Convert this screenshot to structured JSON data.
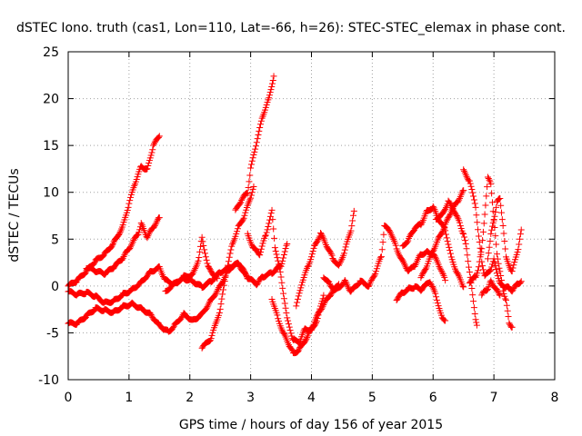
{
  "chart_data": {
    "type": "scatter",
    "title": "dSTEC Iono. truth (cas1, Lon=110, Lat=-66, h=26): STEC-STEC_elemax in phase cont.",
    "xlabel": "GPS time / hours of day 156 of year 2015",
    "ylabel": "dSTEC  / TECUs",
    "xlim": [
      0,
      8
    ],
    "ylim": [
      -10,
      25
    ],
    "xticks": [
      0,
      1,
      2,
      3,
      4,
      5,
      6,
      7,
      8
    ],
    "yticks": [
      -10,
      -5,
      0,
      5,
      10,
      15,
      20,
      25
    ],
    "grid": true,
    "marker": "+",
    "color": "#ff0000",
    "series": [
      {
        "points": [
          [
            0.0,
            0.0
          ],
          [
            0.15,
            0.6
          ],
          [
            0.3,
            1.6
          ],
          [
            0.45,
            2.7
          ],
          [
            0.6,
            3.4
          ],
          [
            0.75,
            4.6
          ],
          [
            0.9,
            6.4
          ],
          [
            1.0,
            8.8
          ],
          [
            1.1,
            11.0
          ],
          [
            1.2,
            12.8
          ],
          [
            1.3,
            12.4
          ],
          [
            1.4,
            15.0
          ],
          [
            1.5,
            16.0
          ]
        ]
      },
      {
        "points": [
          [
            0.3,
            2.0
          ],
          [
            0.45,
            1.6
          ],
          [
            0.6,
            1.3
          ],
          [
            0.75,
            2.0
          ],
          [
            0.9,
            3.0
          ],
          [
            1.0,
            4.0
          ],
          [
            1.15,
            5.6
          ],
          [
            1.2,
            6.6
          ],
          [
            1.3,
            5.2
          ],
          [
            1.4,
            6.3
          ],
          [
            1.5,
            7.3
          ]
        ]
      },
      {
        "points": [
          [
            0.0,
            -4.0
          ],
          [
            0.15,
            -4.0
          ],
          [
            0.3,
            -3.2
          ],
          [
            0.45,
            -2.4
          ],
          [
            0.6,
            -2.6
          ],
          [
            0.75,
            -2.8
          ],
          [
            0.9,
            -2.2
          ],
          [
            1.05,
            -1.9
          ],
          [
            1.2,
            -2.4
          ],
          [
            1.35,
            -3.0
          ],
          [
            1.5,
            -4.2
          ],
          [
            1.65,
            -4.9
          ],
          [
            1.75,
            -4.2
          ],
          [
            1.9,
            -3.0
          ],
          [
            2.05,
            -3.7
          ],
          [
            2.2,
            -3.0
          ],
          [
            2.35,
            -1.5
          ],
          [
            2.5,
            0.0
          ],
          [
            2.65,
            2.0
          ],
          [
            2.8,
            2.4
          ],
          [
            2.95,
            0.8
          ]
        ]
      },
      {
        "points": [
          [
            0.0,
            -0.6
          ],
          [
            0.15,
            -0.9
          ],
          [
            0.3,
            -0.7
          ],
          [
            0.45,
            -1.1
          ],
          [
            0.6,
            -1.8
          ],
          [
            0.75,
            -1.6
          ],
          [
            0.9,
            -0.9
          ],
          [
            1.05,
            -0.4
          ],
          [
            1.2,
            0.4
          ],
          [
            1.35,
            1.5
          ],
          [
            1.5,
            2.0
          ],
          [
            1.6,
            0.6
          ],
          [
            1.75,
            0.2
          ],
          [
            1.9,
            1.0
          ],
          [
            2.05,
            1.2
          ],
          [
            2.15,
            3.0
          ],
          [
            2.2,
            5.2
          ],
          [
            2.3,
            2.0
          ],
          [
            2.45,
            0.8
          ]
        ]
      },
      {
        "points": [
          [
            1.6,
            -0.6
          ],
          [
            1.75,
            0.3
          ],
          [
            1.9,
            0.8
          ],
          [
            2.05,
            0.5
          ],
          [
            2.2,
            -0.1
          ],
          [
            2.35,
            0.5
          ],
          [
            2.5,
            1.5
          ],
          [
            2.65,
            1.8
          ],
          [
            2.8,
            2.5
          ],
          [
            2.95,
            0.9
          ],
          [
            3.1,
            0.2
          ],
          [
            3.2,
            1.0
          ],
          [
            3.35,
            1.4
          ],
          [
            3.5,
            2.2
          ],
          [
            3.6,
            4.5
          ]
        ]
      },
      {
        "points": [
          [
            2.2,
            -6.6
          ],
          [
            2.35,
            -5.6
          ],
          [
            2.5,
            -2.5
          ],
          [
            2.6,
            1.5
          ],
          [
            2.7,
            4.5
          ],
          [
            2.8,
            6.3
          ],
          [
            2.9,
            7.5
          ],
          [
            3.0,
            9.5
          ],
          [
            3.05,
            10.6
          ]
        ]
      },
      {
        "points": [
          [
            2.75,
            8.0
          ],
          [
            2.85,
            9.2
          ],
          [
            2.95,
            10.0
          ],
          [
            3.0,
            12.5
          ],
          [
            3.1,
            15.4
          ],
          [
            3.2,
            18.2
          ],
          [
            3.3,
            20.0
          ],
          [
            3.38,
            22.4
          ]
        ]
      },
      {
        "points": [
          [
            2.95,
            5.5
          ],
          [
            3.05,
            4.0
          ],
          [
            3.15,
            3.4
          ],
          [
            3.25,
            5.5
          ],
          [
            3.35,
            8.0
          ],
          [
            3.4,
            4.2
          ],
          [
            3.5,
            1.0
          ],
          [
            3.6,
            -3.5
          ],
          [
            3.7,
            -5.8
          ],
          [
            3.8,
            -6.0
          ],
          [
            3.9,
            -4.5
          ],
          [
            4.0,
            -4.8
          ],
          [
            4.1,
            -3.5
          ],
          [
            4.2,
            -1.0
          ]
        ]
      },
      {
        "points": [
          [
            3.35,
            -1.3
          ],
          [
            3.45,
            -3.5
          ],
          [
            3.55,
            -5.2
          ],
          [
            3.65,
            -6.5
          ],
          [
            3.7,
            -7.2
          ],
          [
            3.8,
            -6.8
          ],
          [
            3.95,
            -5.2
          ],
          [
            4.05,
            -3.8
          ],
          [
            4.15,
            -2.5
          ],
          [
            4.3,
            -1.0
          ],
          [
            4.45,
            0.2
          ]
        ]
      },
      {
        "points": [
          [
            3.75,
            -2.2
          ],
          [
            3.85,
            0.5
          ],
          [
            3.95,
            2.2
          ],
          [
            4.05,
            4.2
          ],
          [
            4.15,
            5.6
          ],
          [
            4.25,
            4.3
          ],
          [
            4.35,
            3.0
          ],
          [
            4.45,
            2.1
          ],
          [
            4.55,
            3.8
          ],
          [
            4.65,
            6.0
          ],
          [
            4.7,
            8.0
          ]
        ]
      },
      {
        "points": [
          [
            4.2,
            1.0
          ],
          [
            4.3,
            0.2
          ],
          [
            4.4,
            -0.5
          ],
          [
            4.55,
            0.5
          ],
          [
            4.65,
            -0.6
          ],
          [
            4.8,
            0.5
          ],
          [
            4.95,
            0.0
          ],
          [
            5.05,
            1.4
          ],
          [
            5.15,
            3.2
          ],
          [
            5.2,
            6.4
          ],
          [
            5.3,
            5.8
          ],
          [
            5.4,
            4.0
          ],
          [
            5.5,
            2.6
          ],
          [
            5.6,
            1.6
          ],
          [
            5.7,
            2.2
          ],
          [
            5.8,
            3.4
          ],
          [
            5.9,
            3.6
          ],
          [
            6.0,
            3.4
          ],
          [
            6.1,
            2.2
          ],
          [
            6.2,
            0.6
          ]
        ]
      },
      {
        "points": [
          [
            5.4,
            -1.4
          ],
          [
            5.5,
            -0.7
          ],
          [
            5.6,
            -0.3
          ],
          [
            5.7,
            -0.1
          ],
          [
            5.8,
            -0.4
          ],
          [
            5.95,
            0.5
          ],
          [
            6.05,
            -1.1
          ],
          [
            6.15,
            -3.5
          ],
          [
            6.2,
            -3.7
          ]
        ]
      },
      {
        "points": [
          [
            5.5,
            4.2
          ],
          [
            5.6,
            5.0
          ],
          [
            5.7,
            6.2
          ],
          [
            5.8,
            6.6
          ],
          [
            5.9,
            8.0
          ],
          [
            6.0,
            8.4
          ],
          [
            6.1,
            7.0
          ],
          [
            6.2,
            6.0
          ],
          [
            6.3,
            3.0
          ],
          [
            6.4,
            1.3
          ],
          [
            6.5,
            -0.1
          ]
        ]
      },
      {
        "points": [
          [
            5.8,
            0.8
          ],
          [
            5.9,
            2.2
          ],
          [
            6.0,
            3.8
          ],
          [
            6.1,
            5.2
          ],
          [
            6.2,
            6.5
          ],
          [
            6.3,
            8.0
          ],
          [
            6.4,
            9.0
          ],
          [
            6.5,
            10.2
          ]
        ]
      },
      {
        "points": [
          [
            6.05,
            7.2
          ],
          [
            6.15,
            7.6
          ],
          [
            6.25,
            9.0
          ],
          [
            6.35,
            8.0
          ],
          [
            6.45,
            6.5
          ],
          [
            6.5,
            5.5
          ],
          [
            6.55,
            4.0
          ],
          [
            6.6,
            1.5
          ],
          [
            6.65,
            -1.0
          ],
          [
            6.7,
            -3.5
          ],
          [
            6.72,
            -4.2
          ]
        ]
      },
      {
        "points": [
          [
            6.5,
            12.3
          ],
          [
            6.6,
            11.2
          ],
          [
            6.7,
            8.5
          ],
          [
            6.75,
            5.2
          ],
          [
            6.8,
            2.7
          ],
          [
            6.85,
            1.0
          ],
          [
            6.95,
            1.8
          ],
          [
            7.0,
            2.8
          ],
          [
            7.05,
            1.5
          ],
          [
            7.1,
            0.2
          ],
          [
            7.15,
            0.0
          ],
          [
            7.25,
            -0.2
          ],
          [
            7.3,
            -0.5
          ],
          [
            7.4,
            0.3
          ],
          [
            7.45,
            0.5
          ]
        ]
      },
      {
        "points": [
          [
            6.6,
            0.4
          ],
          [
            6.7,
            1.0
          ],
          [
            6.75,
            2.0
          ],
          [
            6.8,
            4.0
          ],
          [
            6.9,
            11.5
          ],
          [
            6.95,
            11.0
          ],
          [
            7.0,
            7.0
          ],
          [
            7.05,
            3.5
          ],
          [
            7.1,
            1.5
          ],
          [
            7.15,
            -0.5
          ],
          [
            7.2,
            -1.5
          ],
          [
            7.25,
            -4.0
          ],
          [
            7.3,
            -4.4
          ]
        ]
      },
      {
        "points": [
          [
            6.9,
            3.0
          ],
          [
            6.95,
            5.5
          ],
          [
            7.0,
            7.0
          ],
          [
            7.05,
            9.0
          ],
          [
            7.1,
            9.3
          ],
          [
            7.15,
            6.5
          ],
          [
            7.2,
            3.0
          ],
          [
            7.3,
            1.5
          ],
          [
            7.4,
            4.0
          ],
          [
            7.45,
            6.0
          ]
        ]
      },
      {
        "points": [
          [
            6.8,
            -1.0
          ],
          [
            6.85,
            -0.5
          ],
          [
            6.9,
            -0.3
          ],
          [
            6.95,
            0.5
          ],
          [
            7.0,
            0.0
          ],
          [
            7.05,
            -0.5
          ],
          [
            7.1,
            -1.0
          ]
        ]
      }
    ]
  }
}
